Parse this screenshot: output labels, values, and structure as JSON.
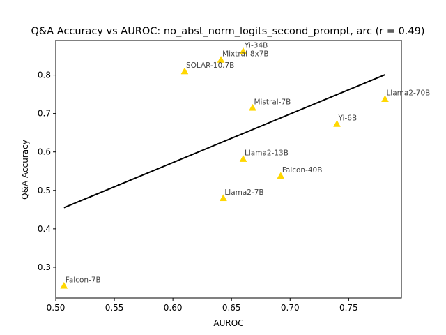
{
  "chart_data": {
    "type": "scatter",
    "title": "Q&A Accuracy vs AUROC: no_abst_norm_logits_second_prompt, arc (r = 0.49)",
    "xlabel": "AUROC",
    "ylabel": "Q&A Accuracy",
    "xlim": [
      0.5,
      0.795
    ],
    "ylim": [
      0.22,
      0.89
    ],
    "xticks": [
      "0.50",
      "0.55",
      "0.60",
      "0.65",
      "0.70",
      "0.75"
    ],
    "yticks": [
      "0.3",
      "0.4",
      "0.5",
      "0.6",
      "0.7",
      "0.8"
    ],
    "grid": false,
    "marker_color": "#FFD700",
    "line_color": "#000000",
    "points": [
      {
        "label": "Yi-34B",
        "x": 0.66,
        "y": 0.862
      },
      {
        "label": "Mixtral-8x7B",
        "x": 0.641,
        "y": 0.84
      },
      {
        "label": "SOLAR-10.7B",
        "x": 0.61,
        "y": 0.81
      },
      {
        "label": "Mistral-7B",
        "x": 0.668,
        "y": 0.715
      },
      {
        "label": "Llama2-70B",
        "x": 0.781,
        "y": 0.738
      },
      {
        "label": "Yi-6B",
        "x": 0.74,
        "y": 0.673
      },
      {
        "label": "Llama2-13B",
        "x": 0.66,
        "y": 0.582
      },
      {
        "label": "Falcon-40B",
        "x": 0.692,
        "y": 0.538
      },
      {
        "label": "Llama2-7B",
        "x": 0.643,
        "y": 0.48
      },
      {
        "label": "Falcon-7B",
        "x": 0.507,
        "y": 0.252
      }
    ],
    "fit_line": {
      "x": [
        0.507,
        0.781
      ],
      "y": [
        0.455,
        0.801
      ]
    }
  }
}
